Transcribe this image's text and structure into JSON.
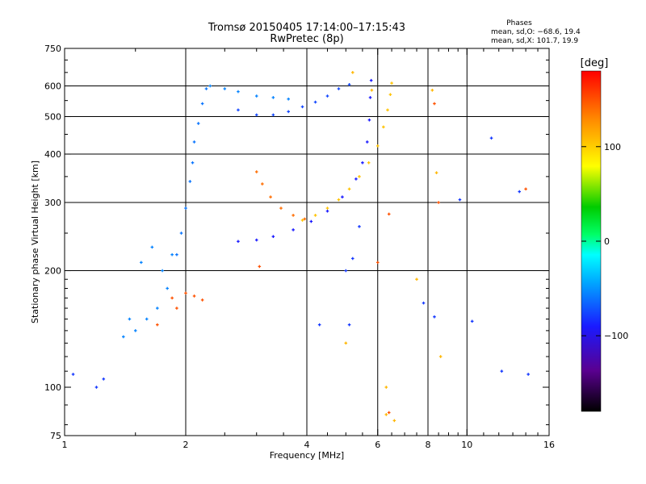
{
  "chart_data": {
    "type": "scatter",
    "title": "Tromsø 20150405 17:14:00–17:15:43",
    "subtitle": "RwPretec (8p)",
    "xlabel": "Frequency [MHz]",
    "ylabel": "Stationary phase Virtual Height [km]",
    "xscale": "log",
    "yscale": "log",
    "xlim": [
      1,
      16
    ],
    "ylim": [
      75,
      750
    ],
    "xticks": [
      1,
      2,
      4,
      6,
      8,
      10,
      16
    ],
    "xtick_labels": [
      "1",
      "2",
      "4",
      "6",
      "8",
      "10",
      "16"
    ],
    "xgrid": [
      2,
      4,
      6,
      8,
      10
    ],
    "xminor": [
      1.5,
      2.5,
      3,
      3.5,
      4.5,
      5,
      5.5,
      6.5,
      7,
      7.5,
      8.5,
      9,
      9.5,
      11,
      12,
      13,
      14,
      15
    ],
    "yticks": [
      75,
      100,
      200,
      300,
      400,
      500,
      600,
      750
    ],
    "ytick_labels": [
      "75",
      "100",
      "200",
      "300",
      "400",
      "500",
      "600",
      "750"
    ],
    "ygrid": [
      200,
      300,
      400,
      500,
      600
    ],
    "yminor": [
      80,
      90,
      110,
      120,
      130,
      140,
      150,
      160,
      170,
      180,
      190,
      250,
      350,
      450,
      550,
      650,
      700
    ],
    "phase_box": {
      "heading": "Phases",
      "line_o": "mean, sd,O: −68.6, 19.4",
      "line_x": "mean, sd,X: 101.7, 19.9"
    },
    "colorbar": {
      "label": "[deg]",
      "range": [
        -180,
        180
      ],
      "ticks": [
        -100,
        0,
        100
      ],
      "tick_labels": [
        "−100",
        "0",
        "100"
      ]
    },
    "series": [
      {
        "name": "arc-outer-x",
        "phase": 105,
        "points": [
          [
            3.9,
            270
          ],
          [
            4.2,
            278
          ],
          [
            4.5,
            290
          ],
          [
            4.8,
            305
          ],
          [
            5.1,
            325
          ],
          [
            5.4,
            350
          ],
          [
            5.7,
            380
          ],
          [
            6.0,
            420
          ],
          [
            6.2,
            470
          ],
          [
            6.35,
            520
          ],
          [
            6.45,
            570
          ],
          [
            6.5,
            610
          ]
        ]
      },
      {
        "name": "arc-outer-o",
        "phase": -90,
        "points": [
          [
            2.7,
            238
          ],
          [
            3.0,
            240
          ],
          [
            3.3,
            245
          ],
          [
            3.7,
            255
          ],
          [
            4.1,
            268
          ],
          [
            4.5,
            285
          ],
          [
            4.9,
            310
          ],
          [
            5.3,
            345
          ],
          [
            5.5,
            380
          ],
          [
            5.65,
            430
          ],
          [
            5.72,
            490
          ],
          [
            5.75,
            560
          ],
          [
            5.78,
            620
          ]
        ]
      },
      {
        "name": "arc-inner-o",
        "phase": 140,
        "points": [
          [
            3.0,
            360
          ],
          [
            3.1,
            335
          ],
          [
            3.25,
            310
          ],
          [
            3.45,
            290
          ],
          [
            3.7,
            278
          ],
          [
            3.95,
            272
          ]
        ]
      },
      {
        "name": "arc-upper-o",
        "phase": -75,
        "points": [
          [
            2.7,
            520
          ],
          [
            3.0,
            505
          ],
          [
            3.3,
            505
          ],
          [
            3.6,
            515
          ],
          [
            3.9,
            530
          ],
          [
            4.2,
            545
          ],
          [
            4.5,
            565
          ],
          [
            4.8,
            590
          ],
          [
            5.1,
            605
          ]
        ]
      },
      {
        "name": "upper-cyan",
        "phase": -55,
        "points": [
          [
            2.3,
            600
          ],
          [
            2.5,
            590
          ],
          [
            2.7,
            580
          ],
          [
            3.0,
            565
          ],
          [
            3.3,
            560
          ],
          [
            3.6,
            555
          ]
        ]
      },
      {
        "name": "fregion-column",
        "phase": -60,
        "points": [
          [
            1.9,
            220
          ],
          [
            1.95,
            250
          ],
          [
            2.0,
            290
          ],
          [
            2.05,
            340
          ],
          [
            2.08,
            380
          ],
          [
            2.1,
            430
          ],
          [
            2.15,
            480
          ],
          [
            2.2,
            540
          ],
          [
            2.25,
            590
          ]
        ]
      },
      {
        "name": "lower-spread",
        "phase": -55,
        "points": [
          [
            1.4,
            135
          ],
          [
            1.5,
            140
          ],
          [
            1.6,
            150
          ],
          [
            1.7,
            160
          ],
          [
            1.8,
            180
          ],
          [
            1.75,
            200
          ],
          [
            1.85,
            220
          ],
          [
            1.65,
            230
          ],
          [
            1.55,
            210
          ],
          [
            1.45,
            150
          ]
        ]
      },
      {
        "name": "low-orange",
        "phase": 150,
        "points": [
          [
            1.85,
            170
          ],
          [
            2.0,
            175
          ],
          [
            2.1,
            172
          ],
          [
            2.2,
            168
          ],
          [
            1.9,
            160
          ],
          [
            1.7,
            145
          ]
        ]
      },
      {
        "name": "scatter-misc",
        "phase": -80,
        "points": [
          [
            1.2,
            100
          ],
          [
            1.25,
            105
          ],
          [
            1.05,
            108
          ],
          [
            5.0,
            200
          ],
          [
            5.2,
            215
          ],
          [
            5.4,
            260
          ],
          [
            7.8,
            165
          ],
          [
            8.3,
            152
          ],
          [
            9.6,
            305
          ],
          [
            11.5,
            440
          ],
          [
            13.5,
            320
          ],
          [
            4.3,
            145
          ],
          [
            5.1,
            145
          ],
          [
            12.2,
            110
          ],
          [
            14.2,
            108
          ],
          [
            10.3,
            148
          ]
        ]
      },
      {
        "name": "scatter-yellow",
        "phase": 110,
        "points": [
          [
            5.2,
            650
          ],
          [
            5.8,
            585
          ],
          [
            7.5,
            190
          ],
          [
            8.2,
            585
          ],
          [
            8.4,
            358
          ],
          [
            5.0,
            130
          ],
          [
            6.3,
            85
          ],
          [
            6.6,
            82
          ],
          [
            6.3,
            100
          ],
          [
            8.6,
            120
          ]
        ]
      },
      {
        "name": "scatter-orange",
        "phase": 150,
        "points": [
          [
            6.0,
            210
          ],
          [
            6.4,
            280
          ],
          [
            8.5,
            300
          ],
          [
            8.3,
            540
          ],
          [
            3.05,
            205
          ],
          [
            14.0,
            325
          ],
          [
            6.4,
            86
          ]
        ]
      }
    ]
  }
}
